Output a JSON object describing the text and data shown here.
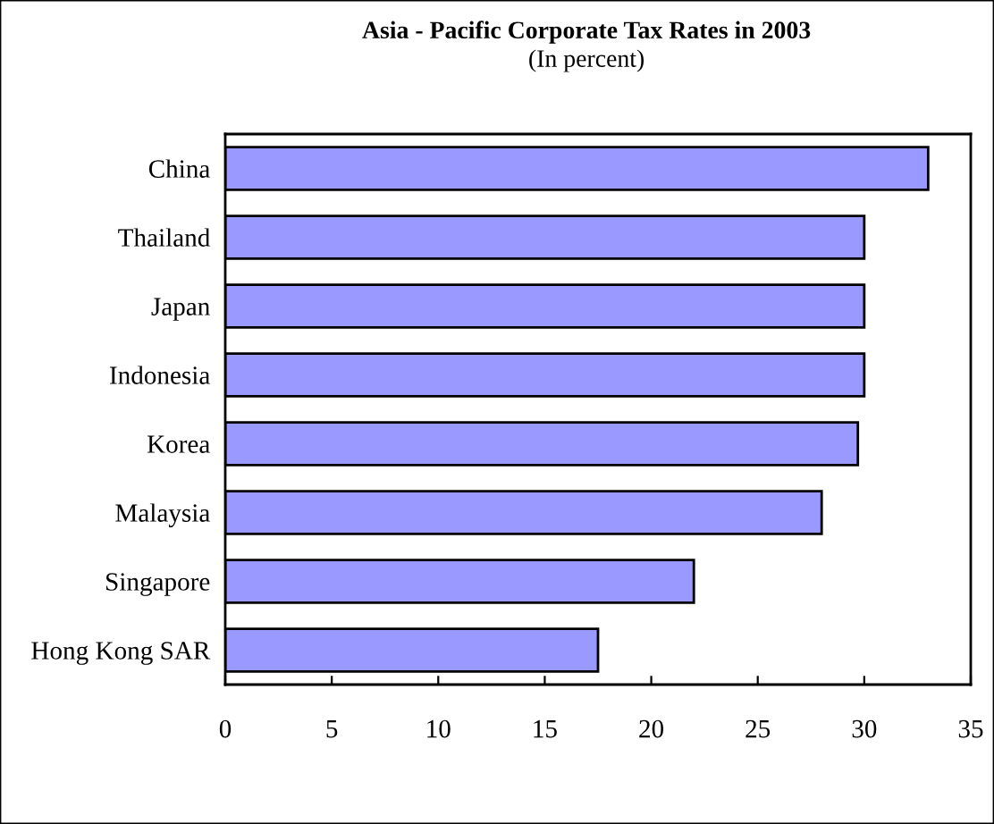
{
  "chart_data": {
    "type": "bar",
    "orientation": "horizontal",
    "title": "Asia - Pacific Corporate Tax Rates in 2003",
    "subtitle": "(In percent)",
    "categories": [
      "China",
      "Thailand",
      "Japan",
      "Indonesia",
      "Korea",
      "Malaysia",
      "Singapore",
      "Hong Kong SAR"
    ],
    "values": [
      33,
      30,
      30,
      30,
      29.7,
      28,
      22,
      17.5
    ],
    "color": "#9999ff",
    "xlim": [
      0,
      35
    ],
    "xticks": [
      0,
      5,
      10,
      15,
      20,
      25,
      30,
      35
    ],
    "grid": false,
    "legend": false
  }
}
